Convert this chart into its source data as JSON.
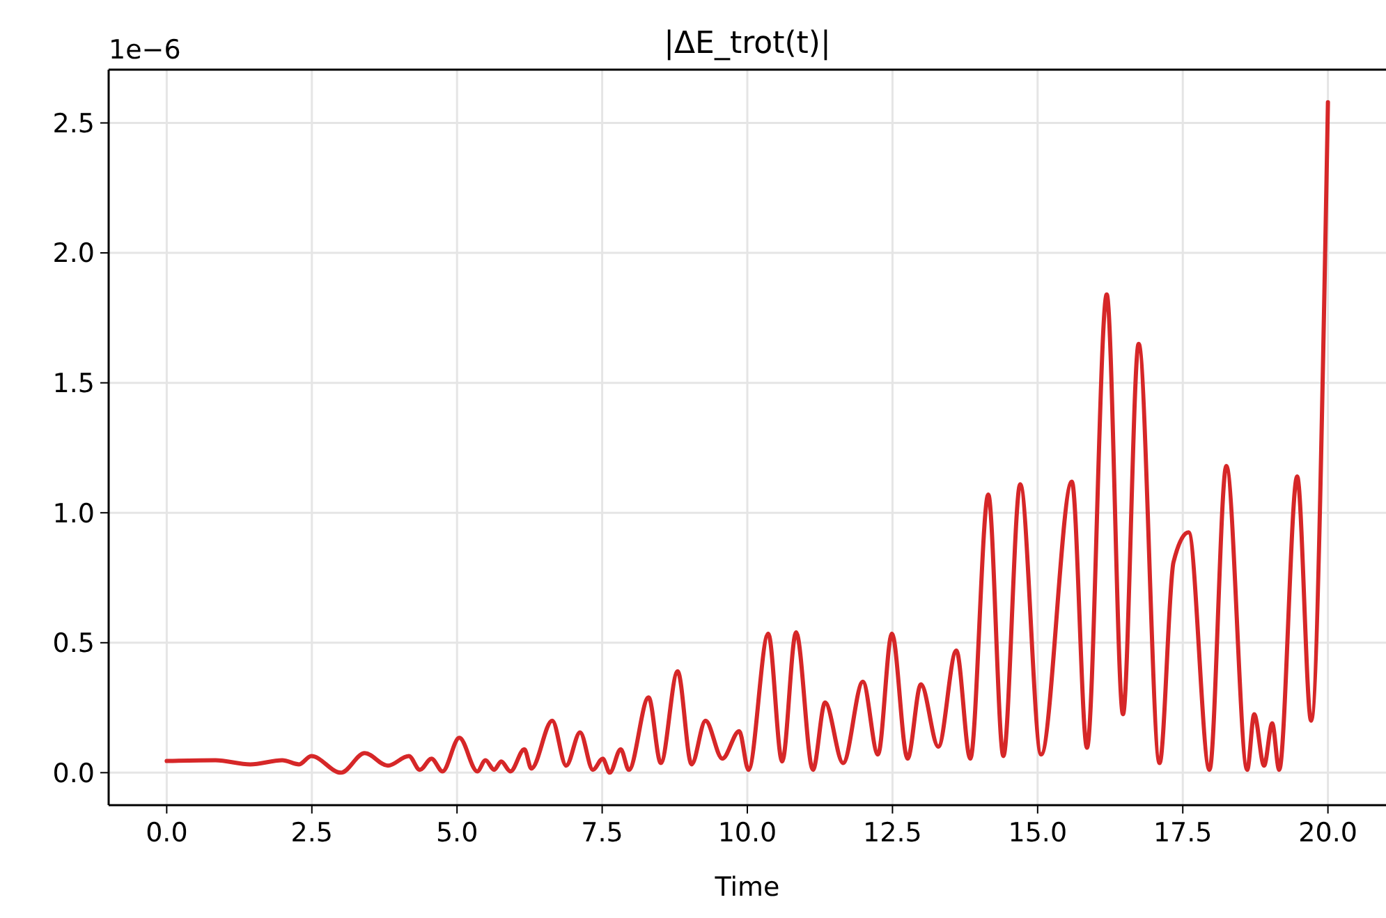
{
  "chart_data": {
    "type": "line",
    "title": "|ΔE_trot(t)|",
    "xlabel": "Time",
    "annotations": [
      "1e−6"
    ],
    "x": [
      0,
      0.84,
      1.44,
      1.99,
      2.28,
      2.49,
      3.0,
      3.41,
      3.81,
      4.17,
      4.36,
      4.56,
      4.75,
      5.04,
      5.35,
      5.49,
      5.64,
      5.76,
      5.92,
      6.16,
      6.28,
      6.64,
      6.88,
      7.12,
      7.34,
      7.51,
      7.63,
      7.82,
      7.96,
      8.3,
      8.51,
      8.8,
      9.04,
      9.28,
      9.57,
      9.86,
      10.02,
      10.36,
      10.6,
      10.84,
      11.13,
      11.34,
      11.65,
      11.99,
      12.25,
      12.49,
      12.76,
      12.99,
      13.29,
      13.6,
      13.84,
      14.15,
      14.41,
      14.7,
      15.06,
      15.59,
      15.85,
      16.19,
      16.47,
      16.74,
      17.1,
      17.34,
      17.6,
      17.96,
      18.25,
      18.61,
      18.73,
      18.9,
      19.04,
      19.16,
      19.47,
      19.71,
      20.0
    ],
    "series": [
      {
        "color": "#d62728",
        "values": [
          0.045,
          0.048,
          0.032,
          0.048,
          0.032,
          0.064,
          0.0,
          0.075,
          0.027,
          0.064,
          0.011,
          0.054,
          0.005,
          0.134,
          0.005,
          0.048,
          0.011,
          0.043,
          0.005,
          0.09,
          0.016,
          0.2,
          0.027,
          0.155,
          0.011,
          0.054,
          0.0,
          0.09,
          0.011,
          0.29,
          0.037,
          0.39,
          0.032,
          0.2,
          0.054,
          0.16,
          0.011,
          0.535,
          0.043,
          0.54,
          0.011,
          0.27,
          0.037,
          0.35,
          0.07,
          0.535,
          0.054,
          0.34,
          0.1,
          0.47,
          0.054,
          1.07,
          0.064,
          1.11,
          0.07,
          1.12,
          0.096,
          1.84,
          0.225,
          1.65,
          0.037,
          0.81,
          0.925,
          0.011,
          1.18,
          0.011,
          0.225,
          0.027,
          0.19,
          0.011,
          1.14,
          0.2,
          2.58
        ]
      }
    ],
    "xlim": [
      -1,
      21
    ],
    "xticks": [
      {
        "value": 0,
        "label": "0.0"
      },
      {
        "value": 2.5,
        "label": "2.5"
      },
      {
        "value": 5,
        "label": "5.0"
      },
      {
        "value": 7.5,
        "label": "7.5"
      },
      {
        "value": 10,
        "label": "10.0"
      },
      {
        "value": 12.5,
        "label": "12.5"
      },
      {
        "value": 15,
        "label": "15.0"
      },
      {
        "value": 17.5,
        "label": "17.5"
      },
      {
        "value": 20,
        "label": "20.0"
      }
    ],
    "ylim": [
      -0.125,
      2.705
    ],
    "yticks": [
      {
        "value": 0,
        "label": "0.0"
      },
      {
        "value": 0.5,
        "label": "0.5"
      },
      {
        "value": 1,
        "label": "1.0"
      },
      {
        "value": 1.5,
        "label": "1.5"
      },
      {
        "value": 2,
        "label": "2.0"
      },
      {
        "value": 2.5,
        "label": "2.5"
      }
    ],
    "grid": true,
    "line_style": "solid",
    "marker": "none"
  }
}
